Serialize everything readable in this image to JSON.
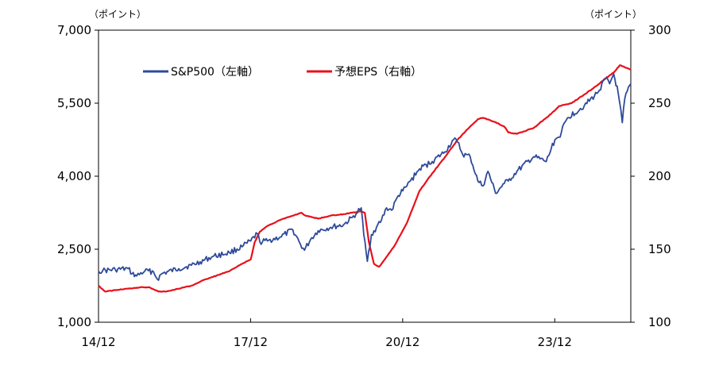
{
  "chart_data": {
    "type": "line",
    "title": "",
    "left_axis": {
      "unit_label": "（ポイント）",
      "ylim": [
        1000,
        7000
      ],
      "ticks": [
        1000,
        2500,
        4000,
        5500,
        7000
      ],
      "tick_labels": [
        "1,000",
        "2,500",
        "4,000",
        "5,500",
        "7,000"
      ]
    },
    "right_axis": {
      "unit_label": "（ポイント）",
      "ylim": [
        100,
        300
      ],
      "ticks": [
        100,
        150,
        200,
        250,
        300
      ],
      "tick_labels": [
        "100",
        "150",
        "200",
        "250",
        "300"
      ]
    },
    "x_axis": {
      "range": [
        2014.917,
        2025.417
      ],
      "ticks": [
        2014.917,
        2017.917,
        2020.917,
        2023.917
      ],
      "tick_labels": [
        "14/12",
        "17/12",
        "20/12",
        "23/12"
      ]
    },
    "grid": false,
    "legend": {
      "placement": "top-left",
      "entries": [
        "S&P500（左軸）",
        "予想EPS（右軸）"
      ]
    },
    "colors": {
      "sp500": "#2e4a9a",
      "eps": "#e8101a"
    },
    "series": [
      {
        "name": "S&P500（左軸）",
        "axis": "left",
        "x": [
          2014.917,
          2015.0,
          2015.25,
          2015.5,
          2015.58,
          2015.67,
          2015.83,
          2016.0,
          2016.08,
          2016.17,
          2016.5,
          2016.75,
          2016.92,
          2017.17,
          2017.5,
          2017.75,
          2017.92,
          2018.05,
          2018.1,
          2018.25,
          2018.5,
          2018.75,
          2018.9,
          2018.98,
          2019.1,
          2019.25,
          2019.5,
          2019.75,
          2019.92,
          2020.0,
          2020.1,
          2020.15,
          2020.22,
          2020.3,
          2020.4,
          2020.5,
          2020.6,
          2020.7,
          2020.83,
          2020.92,
          2021.0,
          2021.25,
          2021.5,
          2021.75,
          2021.92,
          2022.0,
          2022.1,
          2022.25,
          2022.4,
          2022.5,
          2022.6,
          2022.75,
          2022.92,
          2023.0,
          2023.17,
          2023.5,
          2023.75,
          2023.92,
          2024.0,
          2024.17,
          2024.5,
          2024.75,
          2024.92,
          2025.0,
          2025.08,
          2025.17,
          2025.25,
          2025.3,
          2025.417
        ],
        "values": [
          2050,
          2060,
          2080,
          2100,
          2000,
          1950,
          2050,
          2040,
          1880,
          2000,
          2100,
          2170,
          2240,
          2350,
          2430,
          2550,
          2670,
          2820,
          2650,
          2670,
          2750,
          2900,
          2600,
          2480,
          2700,
          2880,
          2950,
          3000,
          3150,
          3230,
          3350,
          2800,
          2250,
          2800,
          2950,
          3100,
          3350,
          3300,
          3600,
          3700,
          3800,
          4150,
          4300,
          4500,
          4750,
          4700,
          4450,
          4400,
          3900,
          3800,
          4100,
          3650,
          3850,
          3900,
          4100,
          4400,
          4300,
          4750,
          4800,
          5200,
          5450,
          5700,
          6000,
          5900,
          6100,
          5700,
          5100,
          5600,
          5900
        ]
      },
      {
        "name": "予想EPS（右軸）",
        "axis": "right",
        "x": [
          2014.917,
          2015.05,
          2015.25,
          2015.5,
          2015.75,
          2015.92,
          2016.1,
          2016.25,
          2016.5,
          2016.75,
          2017.0,
          2017.25,
          2017.5,
          2017.75,
          2017.92,
          2018.0,
          2018.1,
          2018.25,
          2018.5,
          2018.75,
          2018.92,
          2019.0,
          2019.25,
          2019.5,
          2019.75,
          2019.92,
          2020.08,
          2020.17,
          2020.25,
          2020.35,
          2020.45,
          2020.5,
          2020.75,
          2021.0,
          2021.25,
          2021.5,
          2021.75,
          2022.0,
          2022.25,
          2022.4,
          2022.5,
          2022.75,
          2022.92,
          2023.0,
          2023.17,
          2023.5,
          2023.75,
          2023.92,
          2024.0,
          2024.25,
          2024.5,
          2024.75,
          2024.92,
          2025.08,
          2025.2,
          2025.417
        ],
        "values": [
          125,
          121,
          122,
          123,
          124,
          124,
          121,
          121,
          123,
          125,
          129,
          132,
          135,
          140,
          143,
          155,
          162,
          166,
          170,
          173,
          175,
          173,
          171,
          173,
          174,
          175,
          176,
          175,
          155,
          140,
          138,
          140,
          152,
          168,
          190,
          202,
          213,
          225,
          234,
          239,
          240,
          237,
          234,
          230,
          229,
          233,
          240,
          245,
          248,
          250,
          256,
          262,
          267,
          271,
          276,
          273
        ]
      }
    ]
  }
}
